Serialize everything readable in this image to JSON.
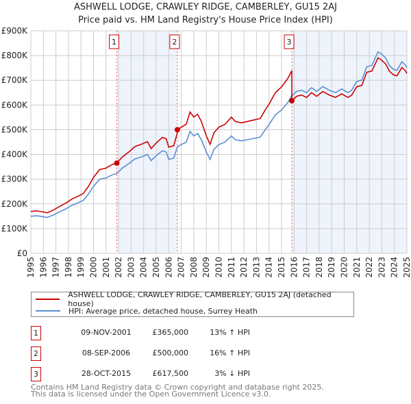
{
  "chart_data": {
    "type": "line",
    "title": "ASHWELL LODGE, CRAWLEY RIDGE, CAMBERLEY, GU15 2AJ",
    "subtitle": "Price paid vs. HM Land Registry's House Price Index (HPI)",
    "xlim": [
      1995,
      2025
    ],
    "ylim": [
      0,
      900000
    ],
    "y_ticks": [
      {
        "value": 0,
        "label": "£0"
      },
      {
        "value": 100000,
        "label": "£100K"
      },
      {
        "value": 200000,
        "label": "£200K"
      },
      {
        "value": 300000,
        "label": "£300K"
      },
      {
        "value": 400000,
        "label": "£400K"
      },
      {
        "value": 500000,
        "label": "£500K"
      },
      {
        "value": 600000,
        "label": "£600K"
      },
      {
        "value": 700000,
        "label": "£700K"
      },
      {
        "value": 800000,
        "label": "£800K"
      },
      {
        "value": 900000,
        "label": "£900K"
      }
    ],
    "x_ticks": [
      "1995",
      "1996",
      "1997",
      "1998",
      "1999",
      "2000",
      "2001",
      "2002",
      "2003",
      "2004",
      "2005",
      "2006",
      "2007",
      "2008",
      "2009",
      "2010",
      "2011",
      "2012",
      "2013",
      "2014",
      "2015",
      "2016",
      "2017",
      "2018",
      "2019",
      "2020",
      "2021",
      "2022",
      "2023",
      "2024",
      "2025"
    ],
    "grid": true,
    "colors": {
      "property": "#cc0000",
      "hpi": "#5b8fd0",
      "shade": "#eef3fc",
      "grid": "#cccccc"
    },
    "series": [
      {
        "name": "ASHWELL LODGE, CRAWLEY RIDGE, CAMBERLEY, GU15 2AJ (detached house)",
        "key": "property"
      },
      {
        "name": "HPI: Average price, detached house, Surrey Heath",
        "key": "hpi",
        "points": [
          [
            1995.0,
            150
          ],
          [
            1995.5,
            152
          ],
          [
            1996.0,
            148
          ],
          [
            1996.3,
            145
          ],
          [
            1996.8,
            155
          ],
          [
            1997.3,
            168
          ],
          [
            1997.8,
            180
          ],
          [
            1998.3,
            195
          ],
          [
            1998.8,
            205
          ],
          [
            1999.2,
            215
          ],
          [
            1999.6,
            240
          ],
          [
            2000.0,
            272
          ],
          [
            2000.5,
            300
          ],
          [
            2001.0,
            305
          ],
          [
            2001.5,
            318
          ],
          [
            2001.86,
            323
          ],
          [
            2002.3,
            345
          ],
          [
            2002.8,
            362
          ],
          [
            2003.3,
            382
          ],
          [
            2003.8,
            390
          ],
          [
            2004.3,
            400
          ],
          [
            2004.6,
            375
          ],
          [
            2005.0,
            395
          ],
          [
            2005.5,
            415
          ],
          [
            2005.8,
            410
          ],
          [
            2006.0,
            380
          ],
          [
            2006.4,
            385
          ],
          [
            2006.69,
            431
          ],
          [
            2007.0,
            440
          ],
          [
            2007.4,
            450
          ],
          [
            2007.7,
            493
          ],
          [
            2008.0,
            475
          ],
          [
            2008.3,
            485
          ],
          [
            2008.6,
            460
          ],
          [
            2009.0,
            410
          ],
          [
            2009.3,
            380
          ],
          [
            2009.6,
            420
          ],
          [
            2010.0,
            440
          ],
          [
            2010.5,
            450
          ],
          [
            2011.0,
            475
          ],
          [
            2011.3,
            460
          ],
          [
            2011.8,
            455
          ],
          [
            2012.3,
            460
          ],
          [
            2012.8,
            465
          ],
          [
            2013.3,
            470
          ],
          [
            2013.7,
            500
          ],
          [
            2014.0,
            520
          ],
          [
            2014.5,
            560
          ],
          [
            2015.0,
            580
          ],
          [
            2015.5,
            610
          ],
          [
            2015.82,
            637
          ],
          [
            2016.2,
            655
          ],
          [
            2016.6,
            660
          ],
          [
            2017.0,
            650
          ],
          [
            2017.4,
            670
          ],
          [
            2017.8,
            655
          ],
          [
            2018.3,
            675
          ],
          [
            2018.8,
            660
          ],
          [
            2019.3,
            650
          ],
          [
            2019.8,
            665
          ],
          [
            2020.3,
            650
          ],
          [
            2020.6,
            660
          ],
          [
            2021.0,
            695
          ],
          [
            2021.4,
            700
          ],
          [
            2021.8,
            755
          ],
          [
            2022.2,
            760
          ],
          [
            2022.7,
            815
          ],
          [
            2023.0,
            805
          ],
          [
            2023.3,
            790
          ],
          [
            2023.6,
            760
          ],
          [
            2023.9,
            745
          ],
          [
            2024.2,
            740
          ],
          [
            2024.6,
            775
          ],
          [
            2024.9,
            760
          ],
          [
            2025.0,
            750
          ]
        ],
        "unit": "thousand GBP"
      }
    ],
    "sales": [
      {
        "id": "1",
        "t": 2001.86,
        "date": "09-NOV-2001",
        "price": "£365,000",
        "value": 365000,
        "hpi_diff": "13% ↑ HPI",
        "ratio": 1.13
      },
      {
        "id": "2",
        "t": 2006.69,
        "date": "08-SEP-2006",
        "price": "£500,000",
        "value": 500000,
        "hpi_diff": "16% ↑ HPI",
        "ratio": 1.16
      },
      {
        "id": "3",
        "t": 2015.82,
        "date": "28-OCT-2015",
        "price": "£617,500",
        "value": 617500,
        "hpi_diff": "3% ↓ HPI",
        "ratio": 0.97
      }
    ]
  },
  "footer": {
    "line1": "Contains HM Land Registry data © Crown copyright and database right 2025.",
    "line2": "This data is licensed under the Open Government Licence v3.0."
  }
}
